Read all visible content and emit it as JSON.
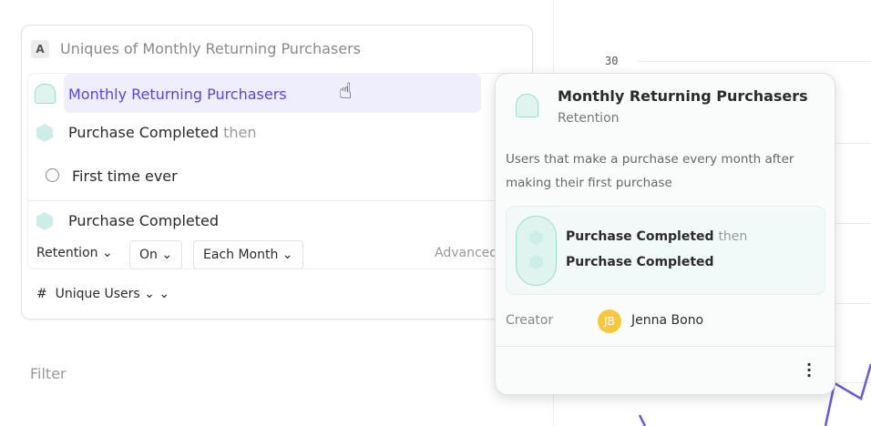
{
  "chart": {
    "ytick": "30",
    "line_color": "#6a55e8"
  },
  "query": {
    "badge": "A",
    "title": "Uniques of Monthly Returning Purchasers",
    "selected_item": "Monthly Returning Purchasers",
    "step1_event": "Purchase Completed",
    "step1_suffix": "then",
    "step1_time": "First time ever",
    "step2_event": "Purchase Completed",
    "retention_label": "Retention",
    "on_label": "On",
    "each_month_label": "Each Month",
    "advanced_label": "Advanced",
    "measure_symbol": "#",
    "measure_label": "Unique Users"
  },
  "filter_label": "Filter",
  "popover": {
    "title": "Monthly Returning Purchasers",
    "type": "Retention",
    "description": "Users that make a purchase every month after making their first purchase",
    "step1": "Purchase Completed",
    "step1_suffix": "then",
    "step2": "Purchase Completed",
    "creator_label": "Creator",
    "creator_initials": "JB",
    "creator_name": "Jenna Bono"
  },
  "colors": {
    "accent": "#5b45e0",
    "highlight": "#efeefd",
    "teal": "#cdeee8",
    "avatar": "#f5c93a"
  }
}
